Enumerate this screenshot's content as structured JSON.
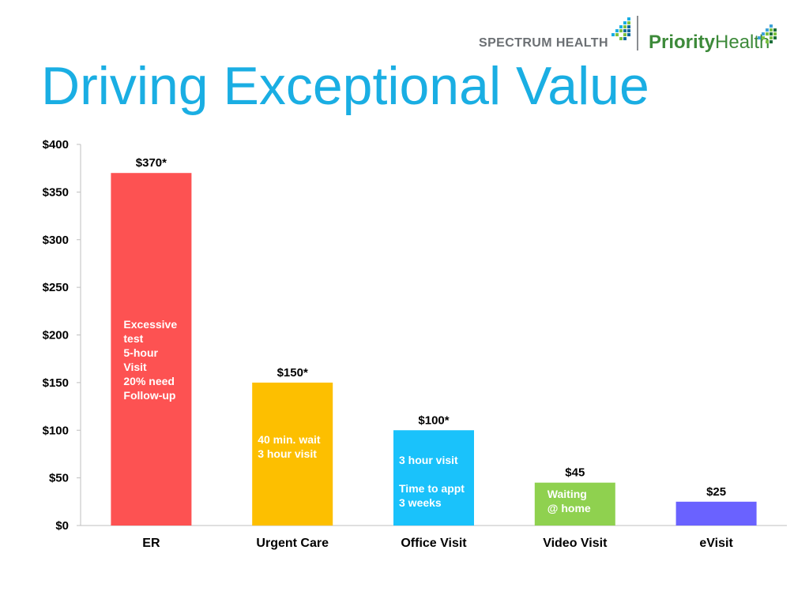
{
  "header": {
    "title": "Driving Exceptional Value",
    "logo_left": "SPECTRUM HEALTH",
    "logo_right_bold": "Priority",
    "logo_right_regular": "Health"
  },
  "colors": {
    "title": "#1aaee3",
    "er": "#fd5252",
    "urgent_care": "#fdbf00",
    "office_visit": "#1ac2fb",
    "video_visit": "#8fd14f",
    "evisit": "#6a62ff"
  },
  "chart_data": {
    "type": "bar",
    "title": "Driving Exceptional Value",
    "xlabel": "",
    "ylabel": "",
    "ylim": [
      0,
      400
    ],
    "yticks": [
      0,
      50,
      100,
      150,
      200,
      250,
      300,
      350,
      400
    ],
    "ytick_labels": [
      "$0",
      "$50",
      "$100",
      "$150",
      "$200",
      "$250",
      "$300",
      "$350",
      "$400"
    ],
    "grid": false,
    "categories": [
      "ER",
      "Urgent Care",
      "Office Visit",
      "Video Visit",
      "eVisit"
    ],
    "values": [
      370,
      150,
      100,
      45,
      25
    ],
    "value_labels": [
      "$370*",
      "$150*",
      "$100*",
      "$45",
      "$25"
    ],
    "bar_colors": [
      "#fd5252",
      "#fdbf00",
      "#1ac2fb",
      "#8fd14f",
      "#6a62ff"
    ],
    "annotations": [
      [
        "Excessive",
        "test",
        "5-hour",
        "Visit",
        "20% need",
        "Follow-up"
      ],
      [
        "40 min. wait",
        "3 hour visit"
      ],
      [
        "3 hour visit",
        "",
        "Time to appt",
        "3 weeks"
      ],
      [
        "Waiting",
        "@ home"
      ],
      []
    ]
  }
}
